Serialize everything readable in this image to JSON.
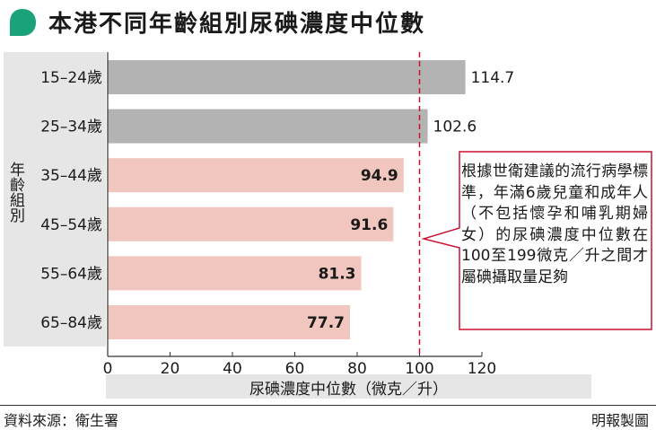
{
  "title": "本港不同年齡組別尿碘濃度中位數",
  "source": "資料來源：衛生署",
  "credit": "明報製圖",
  "callout_text": "根據世衛建議的流行病學標準，年滿6歲兒童和成年人（不包括懷孕和哺乳期婦女）的尿碘濃度中位數在100至199微克／升之間才屬碘攝取量足夠",
  "colors": {
    "bar_gray": "#b3b3b3",
    "bar_pink": "#f0c6be",
    "reference_line": "#c8102e",
    "title_icon": "#1aa37a"
  },
  "chart_data": {
    "type": "bar",
    "orientation": "horizontal",
    "categories": [
      "15–24歲",
      "25–34歲",
      "35–44歲",
      "45–54歲",
      "55–64歲",
      "65–84歲"
    ],
    "values": [
      114.7,
      102.6,
      94.9,
      91.6,
      81.3,
      77.7
    ],
    "value_labels": [
      "114.7",
      "102.6",
      "94.9",
      "91.6",
      "81.3",
      "77.7"
    ],
    "bar_colors": [
      "gray",
      "gray",
      "pink",
      "pink",
      "pink",
      "pink"
    ],
    "ylabel": "年齡組別",
    "xlabel": "尿碘濃度中位數（微克／升）",
    "xlim": [
      0,
      120
    ],
    "xticks": [
      0,
      20,
      40,
      60,
      80,
      100,
      120
    ],
    "reference_line": 100,
    "grid": false,
    "legend": "none"
  }
}
